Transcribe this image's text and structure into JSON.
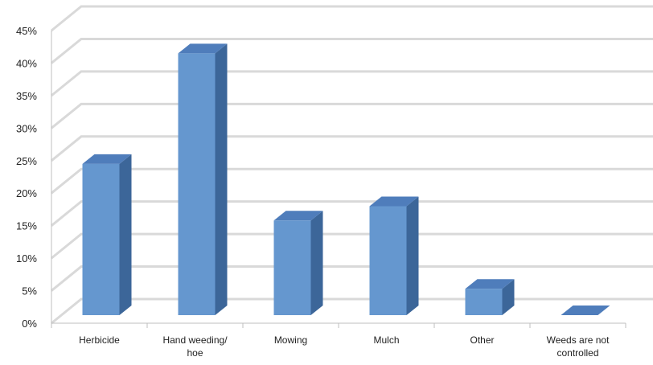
{
  "chart_data": {
    "type": "bar",
    "style": "3d-column",
    "title": "",
    "xlabel": "",
    "ylabel": "",
    "categories": [
      [
        "Herbicide"
      ],
      [
        "Hand weeding/",
        "hoe"
      ],
      [
        "Mowing"
      ],
      [
        "Mulch"
      ],
      [
        "Other"
      ],
      [
        "Weeds are not",
        "controlled"
      ]
    ],
    "values": [
      23.5,
      40.5,
      14.8,
      17.0,
      4.3,
      0.2
    ],
    "ylim": [
      0,
      45
    ],
    "yticks": [
      "0%",
      "5%",
      "10%",
      "15%",
      "20%",
      "25%",
      "30%",
      "35%",
      "40%",
      "45%"
    ],
    "grid": true,
    "legend": "none",
    "colors": {
      "bar_front": "#6597cf",
      "bar_side": "#3c6699",
      "bar_top": "#4f7dbb",
      "grid": "#d9d9d9"
    }
  }
}
